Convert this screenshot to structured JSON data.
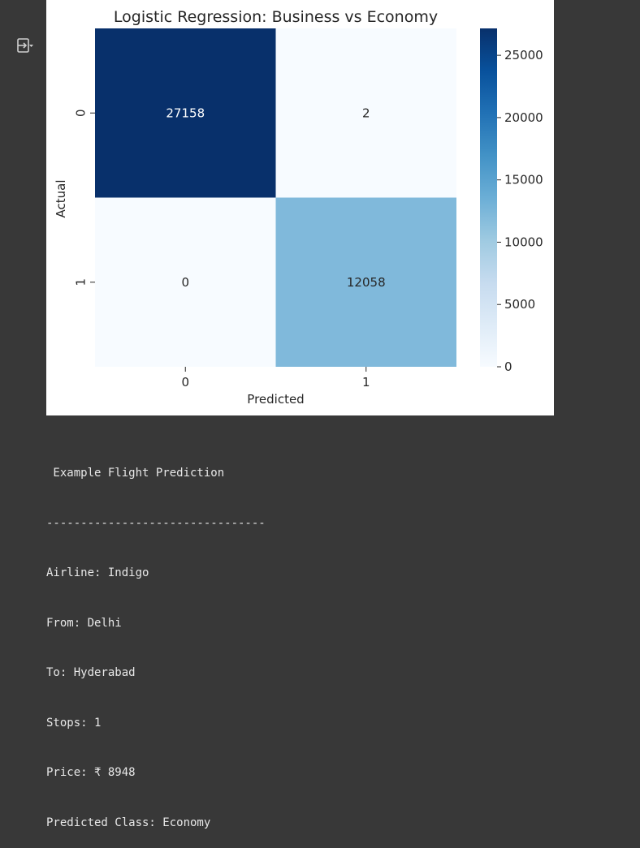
{
  "output": {
    "toggle_icon": "output-collapse-icon"
  },
  "chart_data": {
    "type": "heatmap",
    "title": "Logistic Regression: Business vs Economy",
    "xlabel": "Predicted",
    "ylabel": "Actual",
    "x_categories": [
      "0",
      "1"
    ],
    "y_categories": [
      "0",
      "1"
    ],
    "matrix": [
      [
        27158,
        2
      ],
      [
        0,
        12058
      ]
    ],
    "colormap": "Blues",
    "colorbar": {
      "min": 0,
      "max": 27158,
      "ticks": [
        0,
        5000,
        10000,
        15000,
        20000,
        25000
      ]
    },
    "cell_colors": [
      [
        "#08306b",
        "#f7fbff"
      ],
      [
        "#f7fbff",
        "#80b9db"
      ]
    ]
  },
  "example": {
    "heading": " Example Flight Prediction",
    "separator": "--------------------------------",
    "airline": "Airline: Indigo",
    "from": "From: Delhi",
    "to": "To: Hyderabad",
    "stops": "Stops: 1",
    "price": "Price: ₹ 8948",
    "predicted": "Predicted Class: Economy"
  }
}
